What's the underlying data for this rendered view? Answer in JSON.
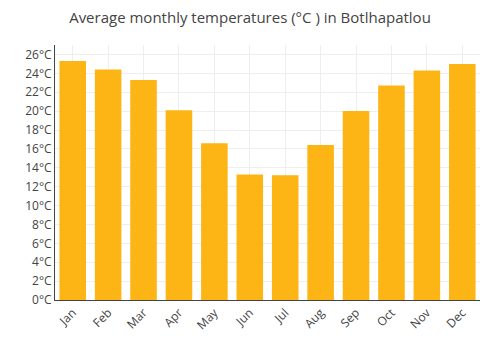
{
  "chart_data": {
    "type": "bar",
    "title": "Average monthly temperatures (°C ) in Botlhapatlou",
    "categories": [
      "Jan",
      "Feb",
      "Mar",
      "Apr",
      "May",
      "Jun",
      "Jul",
      "Aug",
      "Sep",
      "Oct",
      "Nov",
      "Dec"
    ],
    "values": [
      25.3,
      24.4,
      23.3,
      20.1,
      16.6,
      13.3,
      13.2,
      16.4,
      20.0,
      22.7,
      24.3,
      25.0
    ],
    "color": "#FDB515",
    "ylim": [
      0,
      27
    ],
    "yticks": [
      {
        "value": 0,
        "label": "0°C"
      },
      {
        "value": 2,
        "label": "2°C"
      },
      {
        "value": 4,
        "label": "4°C"
      },
      {
        "value": 6,
        "label": "6°C"
      },
      {
        "value": 8,
        "label": "8°C"
      },
      {
        "value": 10,
        "label": "10°C"
      },
      {
        "value": 12,
        "label": "12°C"
      },
      {
        "value": 14,
        "label": "14°C"
      },
      {
        "value": 16,
        "label": "16°C"
      },
      {
        "value": 18,
        "label": "18°C"
      },
      {
        "value": 20,
        "label": "20°C"
      },
      {
        "value": 22,
        "label": "22°C"
      },
      {
        "value": 24,
        "label": "24°C"
      },
      {
        "value": 26,
        "label": "26°C"
      }
    ],
    "grid": true
  }
}
